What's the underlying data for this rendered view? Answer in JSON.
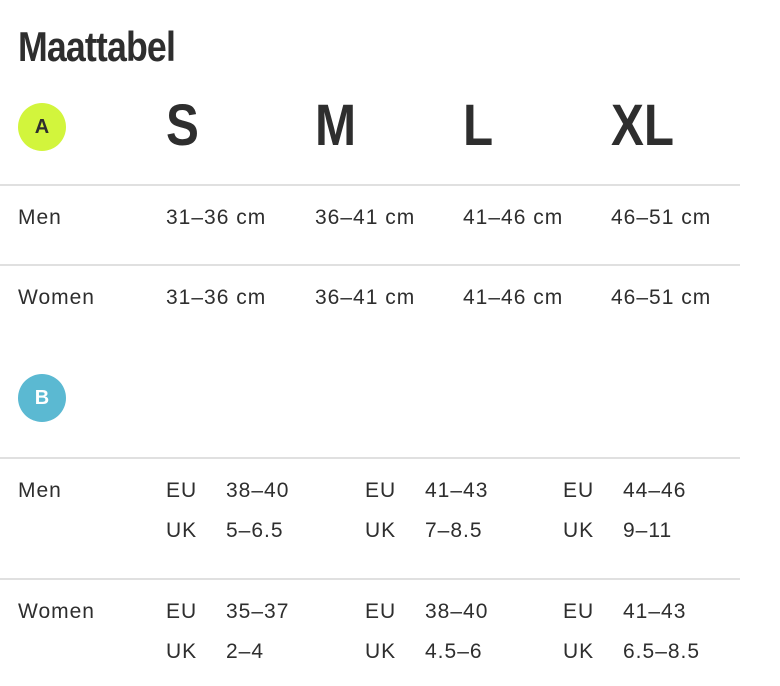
{
  "title": "Maattabel",
  "section_a": {
    "badge": "A",
    "sizes": [
      "S",
      "M",
      "L",
      "XL"
    ],
    "rows": [
      {
        "label": "Men",
        "cells": [
          "31–36 cm",
          "36–41 cm",
          "41–46 cm",
          "46–51 cm"
        ]
      },
      {
        "label": "Women",
        "cells": [
          "31–36 cm",
          "36–41 cm",
          "41–46 cm",
          "46–51 cm"
        ]
      }
    ]
  },
  "section_b": {
    "badge": "B",
    "systems": [
      "EU",
      "UK"
    ],
    "rows": [
      {
        "label": "Men",
        "groups": [
          [
            "38–40",
            "5–6.5"
          ],
          [
            "41–43",
            "7–8.5"
          ],
          [
            "44–46",
            "9–11"
          ]
        ]
      },
      {
        "label": "Women",
        "groups": [
          [
            "35–37",
            "2–4"
          ],
          [
            "38–40",
            "4.5–6"
          ],
          [
            "41–43",
            "6.5–8.5"
          ]
        ]
      }
    ]
  }
}
